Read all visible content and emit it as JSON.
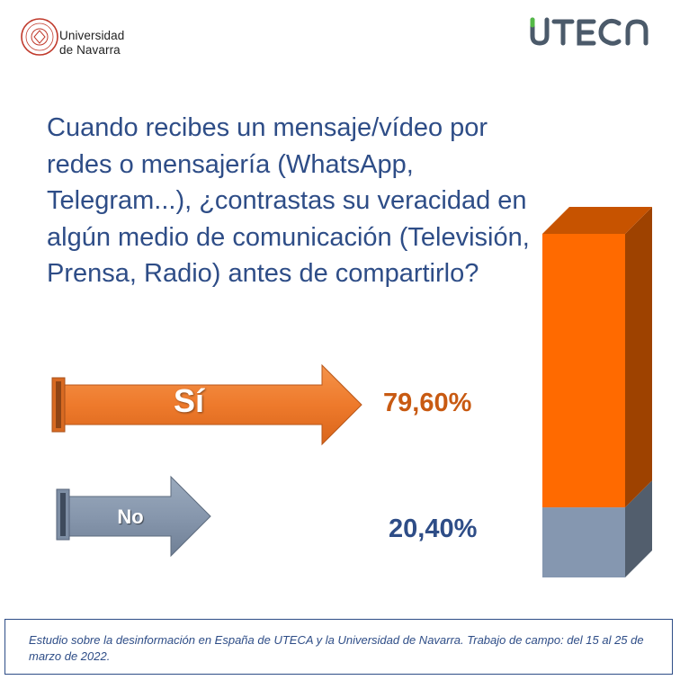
{
  "header": {
    "university_name_line1": "Universidad",
    "university_name_line2": "de Navarra",
    "org_logo": "UTECA",
    "logo_icons": [
      "university-seal-icon",
      "uteca-logo-icon"
    ]
  },
  "question": "Cuando recibes un mensaje/vídeo por redes o mensajería (WhatsApp, Telegram...), ¿contrastas su veracidad en algún medio de comunicación (Televisión, Prensa, Radio) antes de compartirlo?",
  "answers": [
    {
      "label": "Sí",
      "value_text": "79,60%"
    },
    {
      "label": "No",
      "value_text": "20,40%"
    }
  ],
  "chart_data": {
    "type": "bar",
    "stacked": true,
    "categories": [
      "Sí",
      "No"
    ],
    "values": [
      79.6,
      20.4
    ],
    "colors": [
      "#ff6a00",
      "#8597b0"
    ],
    "ylim": [
      0,
      100
    ]
  },
  "footer": {
    "text": "Estudio sobre la desinformación en España de UTECA y la Universidad de Navarra. Trabajo de campo: del 15 al 25 de marzo de 2022."
  }
}
